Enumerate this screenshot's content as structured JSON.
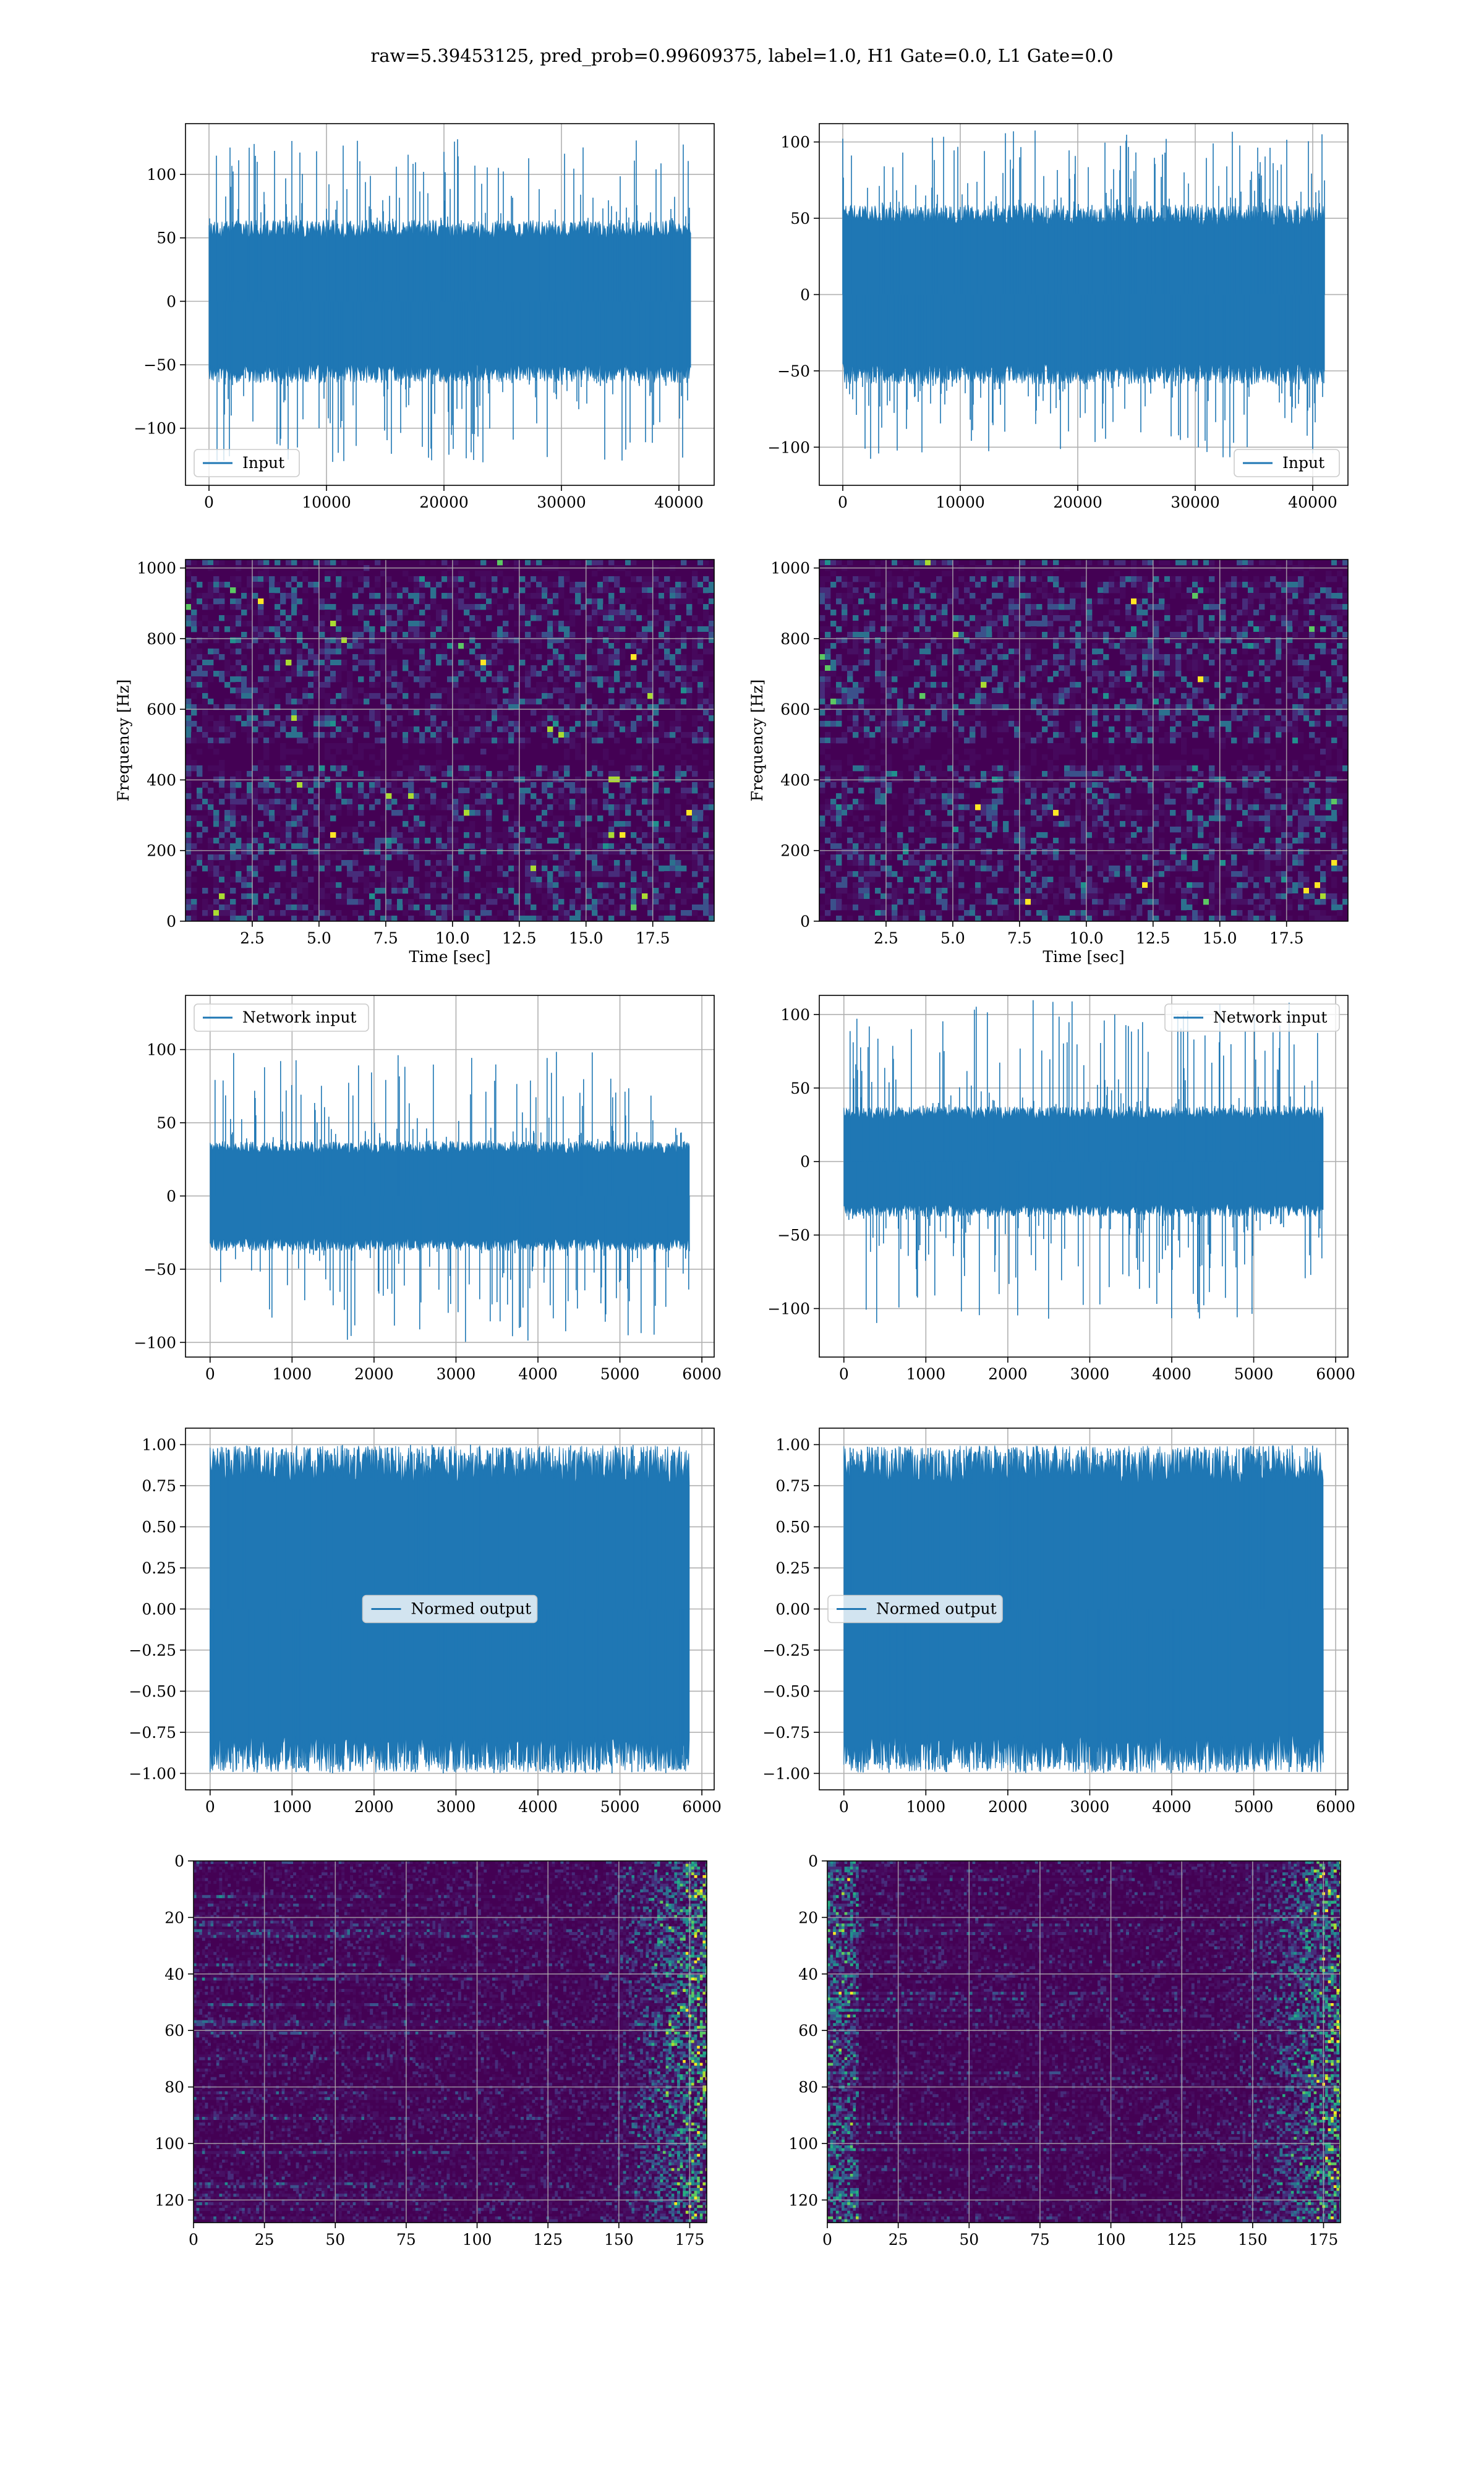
{
  "suptitle": "raw=5.39453125, pred_prob=0.99609375, label=1.0, H1 Gate=0.0, L1 Gate=0.0",
  "colors": {
    "line": "#1f77b4",
    "grid": "#b0b0b0",
    "spec_bg": "#440154"
  },
  "chart_data": [
    {
      "id": "r1c1",
      "type": "line",
      "legend": "Input",
      "legend_loc": "lower left",
      "xlim": [
        -2000,
        43000
      ],
      "ylim": [
        -145,
        140
      ],
      "xticks": [
        0,
        10000,
        20000,
        30000,
        40000
      ],
      "xtick_labels": [
        "0",
        "10000",
        "20000",
        "30000",
        "40000"
      ],
      "yticks": [
        -100,
        -50,
        0,
        50,
        100
      ],
      "ytick_labels": [
        "−100",
        "−50",
        "0",
        "50",
        "100"
      ],
      "x_range": [
        0,
        41000
      ],
      "amp_core": 60,
      "amp_peak": 128,
      "grid": true
    },
    {
      "id": "r1c2",
      "type": "line",
      "legend": "Input",
      "legend_loc": "lower right",
      "xlim": [
        -2000,
        43000
      ],
      "ylim": [
        -125,
        112
      ],
      "xticks": [
        0,
        10000,
        20000,
        30000,
        40000
      ],
      "xtick_labels": [
        "0",
        "10000",
        "20000",
        "30000",
        "40000"
      ],
      "yticks": [
        -100,
        -50,
        0,
        50,
        100
      ],
      "ytick_labels": [
        "−100",
        "−50",
        "0",
        "50",
        "100"
      ],
      "x_range": [
        0,
        41000
      ],
      "amp_core": 55,
      "amp_peak": 108,
      "grid": true
    },
    {
      "id": "r2c1",
      "type": "heatmap",
      "xlabel": "Time [sec]",
      "ylabel": "Frequency [Hz]",
      "xlim": [
        0,
        19.8
      ],
      "ylim": [
        0,
        1024
      ],
      "xticks": [
        2.5,
        5,
        7.5,
        10,
        12.5,
        15,
        17.5
      ],
      "xtick_labels": [
        "2.5",
        "5.0",
        "7.5",
        "10.0",
        "12.5",
        "15.0",
        "17.5"
      ],
      "yticks": [
        0,
        200,
        400,
        600,
        800,
        1000
      ],
      "ytick_labels": [
        "0",
        "200",
        "400",
        "600",
        "800",
        "1000"
      ],
      "grid": true
    },
    {
      "id": "r2c2",
      "type": "heatmap",
      "xlabel": "Time [sec]",
      "ylabel": "Frequency [Hz]",
      "xlim": [
        0,
        19.8
      ],
      "ylim": [
        0,
        1024
      ],
      "xticks": [
        2.5,
        5,
        7.5,
        10,
        12.5,
        15,
        17.5
      ],
      "xtick_labels": [
        "2.5",
        "5.0",
        "7.5",
        "10.0",
        "12.5",
        "15.0",
        "17.5"
      ],
      "yticks": [
        0,
        200,
        400,
        600,
        800,
        1000
      ],
      "ytick_labels": [
        "0",
        "200",
        "400",
        "600",
        "800",
        "1000"
      ],
      "grid": true
    },
    {
      "id": "r3c1",
      "type": "line",
      "legend": "Network input",
      "legend_loc": "upper left",
      "xlim": [
        -300,
        6150
      ],
      "ylim": [
        -110,
        137
      ],
      "xticks": [
        0,
        1000,
        2000,
        3000,
        4000,
        5000,
        6000
      ],
      "xtick_labels": [
        "0",
        "1000",
        "2000",
        "3000",
        "4000",
        "5000",
        "6000"
      ],
      "yticks": [
        -100,
        -50,
        0,
        50,
        100
      ],
      "ytick_labels": [
        "−100",
        "−50",
        "0",
        "50",
        "100"
      ],
      "x_range": [
        0,
        5850
      ],
      "amp_core": 35,
      "amp_peak": 100,
      "grid": true
    },
    {
      "id": "r3c2",
      "type": "line",
      "legend": "Network input",
      "legend_loc": "upper right",
      "xlim": [
        -300,
        6150
      ],
      "ylim": [
        -133,
        113
      ],
      "xticks": [
        0,
        1000,
        2000,
        3000,
        4000,
        5000,
        6000
      ],
      "xtick_labels": [
        "0",
        "1000",
        "2000",
        "3000",
        "4000",
        "5000",
        "6000"
      ],
      "yticks": [
        -100,
        -50,
        0,
        50,
        100
      ],
      "ytick_labels": [
        "−100",
        "−50",
        "0",
        "50",
        "100"
      ],
      "x_range": [
        0,
        5850
      ],
      "amp_core": 35,
      "amp_peak": 110,
      "grid": true
    },
    {
      "id": "r4c1",
      "type": "line",
      "legend": "Normed output",
      "legend_loc": "center",
      "xlim": [
        -300,
        6150
      ],
      "ylim": [
        -1.1,
        1.1
      ],
      "xticks": [
        0,
        1000,
        2000,
        3000,
        4000,
        5000,
        6000
      ],
      "xtick_labels": [
        "0",
        "1000",
        "2000",
        "3000",
        "4000",
        "5000",
        "6000"
      ],
      "yticks": [
        -1,
        -0.75,
        -0.5,
        -0.25,
        0,
        0.25,
        0.5,
        0.75,
        1
      ],
      "ytick_labels": [
        "−1.00",
        "−0.75",
        "−0.50",
        "−0.25",
        "0.00",
        "0.25",
        "0.50",
        "0.75",
        "1.00"
      ],
      "x_range": [
        0,
        5850
      ],
      "amp_core": 0.93,
      "amp_peak": 1.0,
      "grid": true
    },
    {
      "id": "r4c2",
      "type": "line",
      "legend": "Normed output",
      "legend_loc": "center left",
      "xlim": [
        -300,
        6150
      ],
      "ylim": [
        -1.1,
        1.1
      ],
      "xticks": [
        0,
        1000,
        2000,
        3000,
        4000,
        5000,
        6000
      ],
      "xtick_labels": [
        "0",
        "1000",
        "2000",
        "3000",
        "4000",
        "5000",
        "6000"
      ],
      "yticks": [
        -1,
        -0.75,
        -0.5,
        -0.25,
        0,
        0.25,
        0.5,
        0.75,
        1
      ],
      "ytick_labels": [
        "−1.00",
        "−0.75",
        "−0.50",
        "−0.25",
        "0.00",
        "0.25",
        "0.50",
        "0.75",
        "1.00"
      ],
      "x_range": [
        0,
        5850
      ],
      "amp_core": 0.93,
      "amp_peak": 1.0,
      "grid": true
    },
    {
      "id": "r5c1",
      "type": "heatmap",
      "ydir": "reversed",
      "xlim": [
        0,
        181
      ],
      "ylim": [
        128,
        0
      ],
      "xticks": [
        0,
        25,
        50,
        75,
        100,
        125,
        150,
        175
      ],
      "xtick_labels": [
        "0",
        "25",
        "50",
        "75",
        "100",
        "125",
        "150",
        "175"
      ],
      "yticks": [
        0,
        20,
        40,
        60,
        80,
        100,
        120
      ],
      "ytick_labels": [
        "0",
        "20",
        "40",
        "60",
        "80",
        "100",
        "120"
      ],
      "grid": true
    },
    {
      "id": "r5c2",
      "type": "heatmap",
      "ydir": "reversed",
      "xlim": [
        0,
        181
      ],
      "ylim": [
        128,
        0
      ],
      "xticks": [
        0,
        25,
        50,
        75,
        100,
        125,
        150,
        175
      ],
      "xtick_labels": [
        "0",
        "25",
        "50",
        "75",
        "100",
        "125",
        "150",
        "175"
      ],
      "yticks": [
        0,
        20,
        40,
        60,
        80,
        100,
        120
      ],
      "ytick_labels": [
        "0",
        "20",
        "40",
        "60",
        "80",
        "100",
        "120"
      ],
      "grid": true
    }
  ]
}
